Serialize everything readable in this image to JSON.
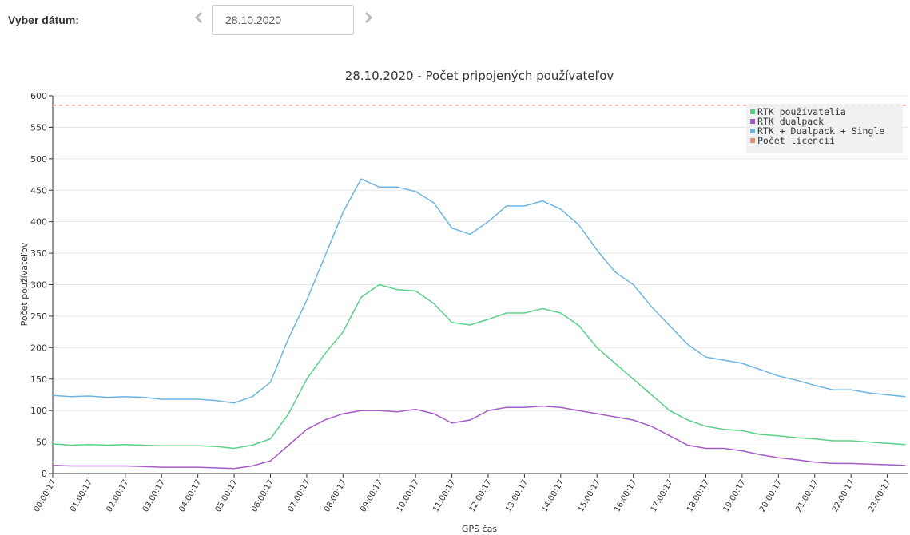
{
  "ui": {
    "date_label": "Vyber dátum:",
    "date_value": "28.10.2020"
  },
  "chart_data": {
    "type": "line",
    "title": "28.10.2020 - Počet pripojených používateľov",
    "x_label": "GPS čas",
    "y_label": "Počet používateľov",
    "x": [
      0,
      0.5,
      1,
      1.5,
      2,
      2.5,
      3,
      3.5,
      4,
      4.5,
      5,
      5.5,
      6,
      6.5,
      7,
      7.5,
      8,
      8.5,
      9,
      9.5,
      10,
      10.5,
      11,
      11.5,
      12,
      12.5,
      13,
      13.5,
      14,
      14.5,
      15,
      15.5,
      16,
      16.5,
      17,
      17.5,
      18,
      18.5,
      19,
      19.5,
      20,
      20.5,
      21,
      21.5,
      22,
      22.5,
      23,
      23.5
    ],
    "series": [
      {
        "name": "RTK používatelia",
        "color": "#5cd08a",
        "values": [
          47,
          45,
          46,
          45,
          46,
          45,
          44,
          44,
          44,
          43,
          40,
          45,
          55,
          95,
          150,
          190,
          225,
          280,
          300,
          292,
          290,
          270,
          240,
          236,
          245,
          255,
          255,
          262,
          255,
          235,
          200,
          175,
          150,
          125,
          100,
          85,
          75,
          70,
          68,
          62,
          60,
          57,
          55,
          52,
          52,
          50,
          48,
          46
        ]
      },
      {
        "name": "RTK dualpack",
        "color": "#a65cc6",
        "values": [
          13,
          12,
          12,
          12,
          12,
          11,
          10,
          10,
          10,
          9,
          8,
          12,
          20,
          45,
          70,
          85,
          95,
          100,
          100,
          98,
          102,
          95,
          80,
          85,
          100,
          105,
          105,
          107,
          105,
          100,
          95,
          90,
          85,
          75,
          60,
          45,
          40,
          40,
          36,
          30,
          25,
          22,
          18,
          16,
          16,
          15,
          14,
          13
        ]
      },
      {
        "name": "RTK + Dualpack + Single",
        "color": "#6db5e0",
        "values": [
          124,
          122,
          123,
          121,
          122,
          121,
          118,
          118,
          118,
          116,
          112,
          122,
          145,
          215,
          275,
          345,
          415,
          468,
          455,
          455,
          448,
          430,
          390,
          380,
          400,
          425,
          425,
          433,
          420,
          395,
          355,
          320,
          300,
          265,
          235,
          205,
          185,
          180,
          175,
          165,
          155,
          148,
          140,
          133,
          133,
          128,
          125,
          122
        ]
      },
      {
        "name": "Počet licencii",
        "color": "#e8907a",
        "dashed": true,
        "x": [
          0,
          23.56
        ],
        "values": [
          585,
          585
        ]
      }
    ],
    "xlim": [
      0,
      23.56
    ],
    "xticks": [
      {
        "value": 0,
        "label": "00:00:17"
      },
      {
        "value": 1,
        "label": "01:00:17"
      },
      {
        "value": 2,
        "label": "02:00:17"
      },
      {
        "value": 3,
        "label": "03:00:17"
      },
      {
        "value": 4,
        "label": "04:00:17"
      },
      {
        "value": 5,
        "label": "05:00:17"
      },
      {
        "value": 6,
        "label": "06:00:17"
      },
      {
        "value": 7,
        "label": "07:00:17"
      },
      {
        "value": 8,
        "label": "08:00:17"
      },
      {
        "value": 9,
        "label": "09:00:17"
      },
      {
        "value": 10,
        "label": "10:00:17"
      },
      {
        "value": 11,
        "label": "11:00:17"
      },
      {
        "value": 12,
        "label": "12:00:17"
      },
      {
        "value": 13,
        "label": "13:00:17"
      },
      {
        "value": 14,
        "label": "14:00:17"
      },
      {
        "value": 15,
        "label": "15:00:17"
      },
      {
        "value": 16,
        "label": "16:00:17"
      },
      {
        "value": 17,
        "label": "17:00:17"
      },
      {
        "value": 18,
        "label": "18:00:17"
      },
      {
        "value": 19,
        "label": "19:00:17"
      },
      {
        "value": 20,
        "label": "20:00:17"
      },
      {
        "value": 21,
        "label": "21:00:17"
      },
      {
        "value": 22,
        "label": "22:00:17"
      },
      {
        "value": 23,
        "label": "23:00:17"
      }
    ],
    "ylim": [
      0,
      600
    ],
    "yticks": [
      0,
      50,
      100,
      150,
      200,
      250,
      300,
      350,
      400,
      450,
      500,
      550,
      600
    ],
    "grid": true,
    "legend": "top-right"
  }
}
